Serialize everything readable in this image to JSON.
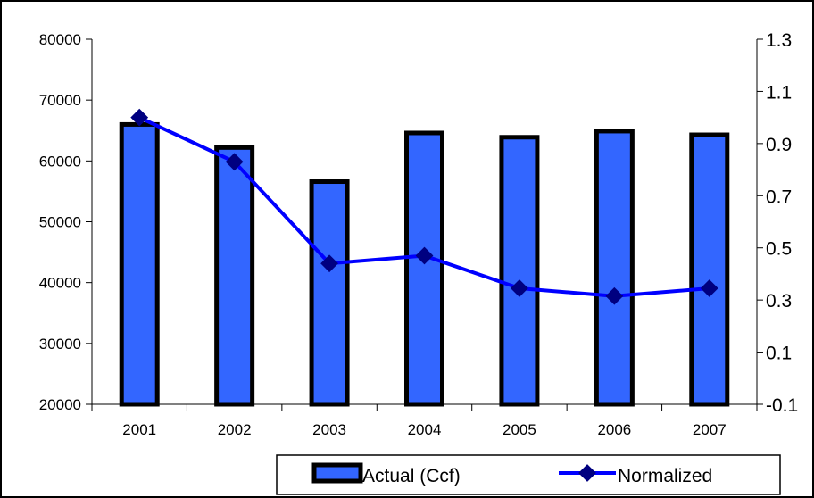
{
  "chart_data": {
    "type": "bar",
    "categories": [
      "2001",
      "2002",
      "2003",
      "2004",
      "2005",
      "2006",
      "2007"
    ],
    "series": [
      {
        "name": "Actual (Ccf)",
        "type": "bar",
        "axis": "left",
        "values": [
          66000,
          62200,
          56600,
          64600,
          63900,
          64900,
          64300
        ]
      },
      {
        "name": "Normalized",
        "type": "line",
        "axis": "right",
        "values": [
          1.0,
          0.83,
          0.44,
          0.47,
          0.345,
          0.315,
          0.345
        ]
      }
    ],
    "y_left": {
      "ylim": [
        20000,
        80000
      ],
      "ticks": [
        "20000",
        "30000",
        "40000",
        "50000",
        "60000",
        "70000",
        "80000"
      ]
    },
    "y_right": {
      "ylim": [
        -0.1,
        1.3
      ],
      "ticks": [
        "-0.1",
        "0.1",
        "0.3",
        "0.5",
        "0.7",
        "0.9",
        "1.1",
        "1.3"
      ]
    },
    "title": "",
    "xlabel": "",
    "ylabel": "",
    "grid": false,
    "legend_position": "bottom-right",
    "colors": {
      "bar_fill": "#3366FF",
      "bar_stroke": "#000000",
      "line": "#0000FF",
      "marker": "#000080"
    }
  }
}
